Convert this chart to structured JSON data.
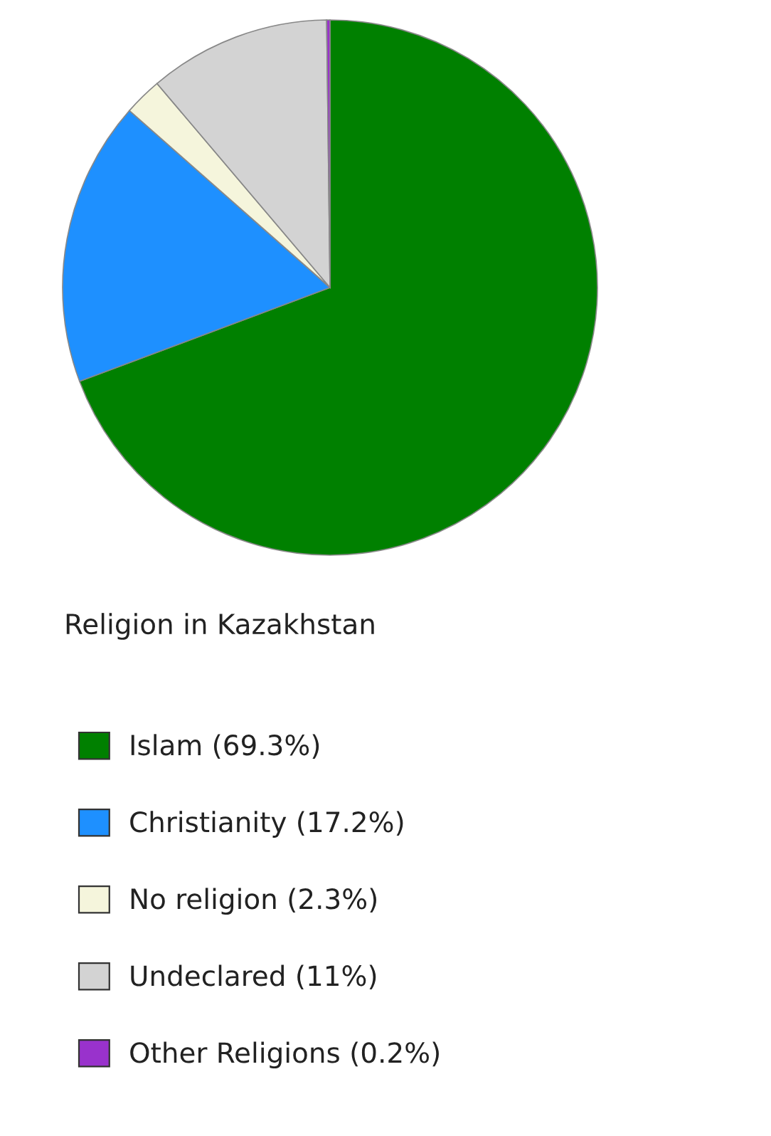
{
  "chart_data": {
    "type": "pie",
    "title": "Religion in Kazakhstan",
    "categories": [
      "Islam (69.3%)",
      "Christianity (17.2%)",
      "No religion (2.3%)",
      "Undeclared (11%)",
      "Other Religions (0.2%)"
    ],
    "values": [
      69.3,
      17.2,
      2.3,
      11,
      0.2
    ],
    "colors": [
      "#008000",
      "#1e90ff",
      "#f5f5dc",
      "#d3d3d3",
      "#9932cc"
    ],
    "legend": "bottom"
  }
}
